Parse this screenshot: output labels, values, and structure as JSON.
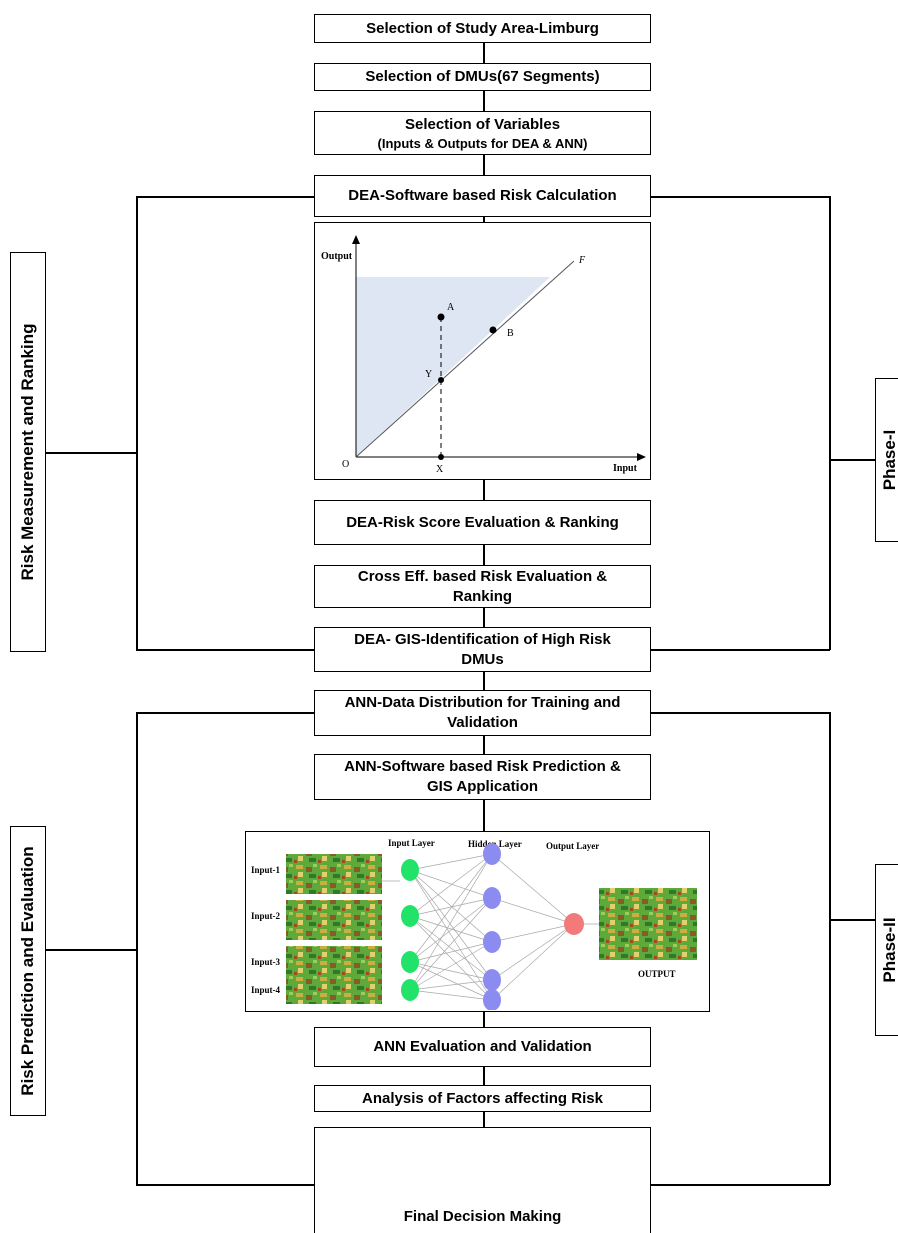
{
  "steps": {
    "study_area": "Selection of Study Area-Limburg",
    "dmus": "Selection of DMUs(67 Segments)",
    "variables_line1": "Selection of Variables",
    "variables_line2": "(Inputs & Outputs for DEA & ANN)",
    "dea_software": "DEA-Software based Risk Calculation",
    "dea_score": "DEA-Risk Score Evaluation & Ranking",
    "cross_eff_line1": "Cross Eff. based Risk Evaluation &",
    "cross_eff_line2": "Ranking",
    "dea_gis_line1": "DEA- GIS-Identification of High Risk",
    "dea_gis_line2": "DMUs",
    "ann_data_line1": "ANN-Data Distribution for Training and",
    "ann_data_line2": "Validation",
    "ann_software_line1": "ANN-Software based Risk Prediction &",
    "ann_software_line2": "GIS Application",
    "ann_eval": "ANN Evaluation and Validation",
    "factors": "Analysis of Factors affecting Risk",
    "final": "Final Decision Making"
  },
  "side_labels": {
    "left_top": "Risk Measurement and Ranking",
    "left_bottom": "Risk Prediction and Evaluation",
    "right_top": "Phase-I",
    "right_bottom": "Phase-II"
  },
  "dea_plot": {
    "y_axis": "Output",
    "x_axis": "Input",
    "origin": "O",
    "frontier": "F",
    "point_a": "A",
    "point_b": "B",
    "point_y": "Y",
    "point_x": "X",
    "shade_color": "#dde6f2"
  },
  "ann": {
    "input_layer": "Input Layer",
    "hidden_layer": "Hidden Layer",
    "output_layer": "Output Layer",
    "inputs": [
      "Input-1",
      "Input-2",
      "Input-3",
      "Input-4"
    ],
    "output_label": "OUTPUT",
    "input_node_color": "#22e36a",
    "hidden_node_color": "#8c8cf0",
    "output_node_color": "#f27a7a"
  }
}
